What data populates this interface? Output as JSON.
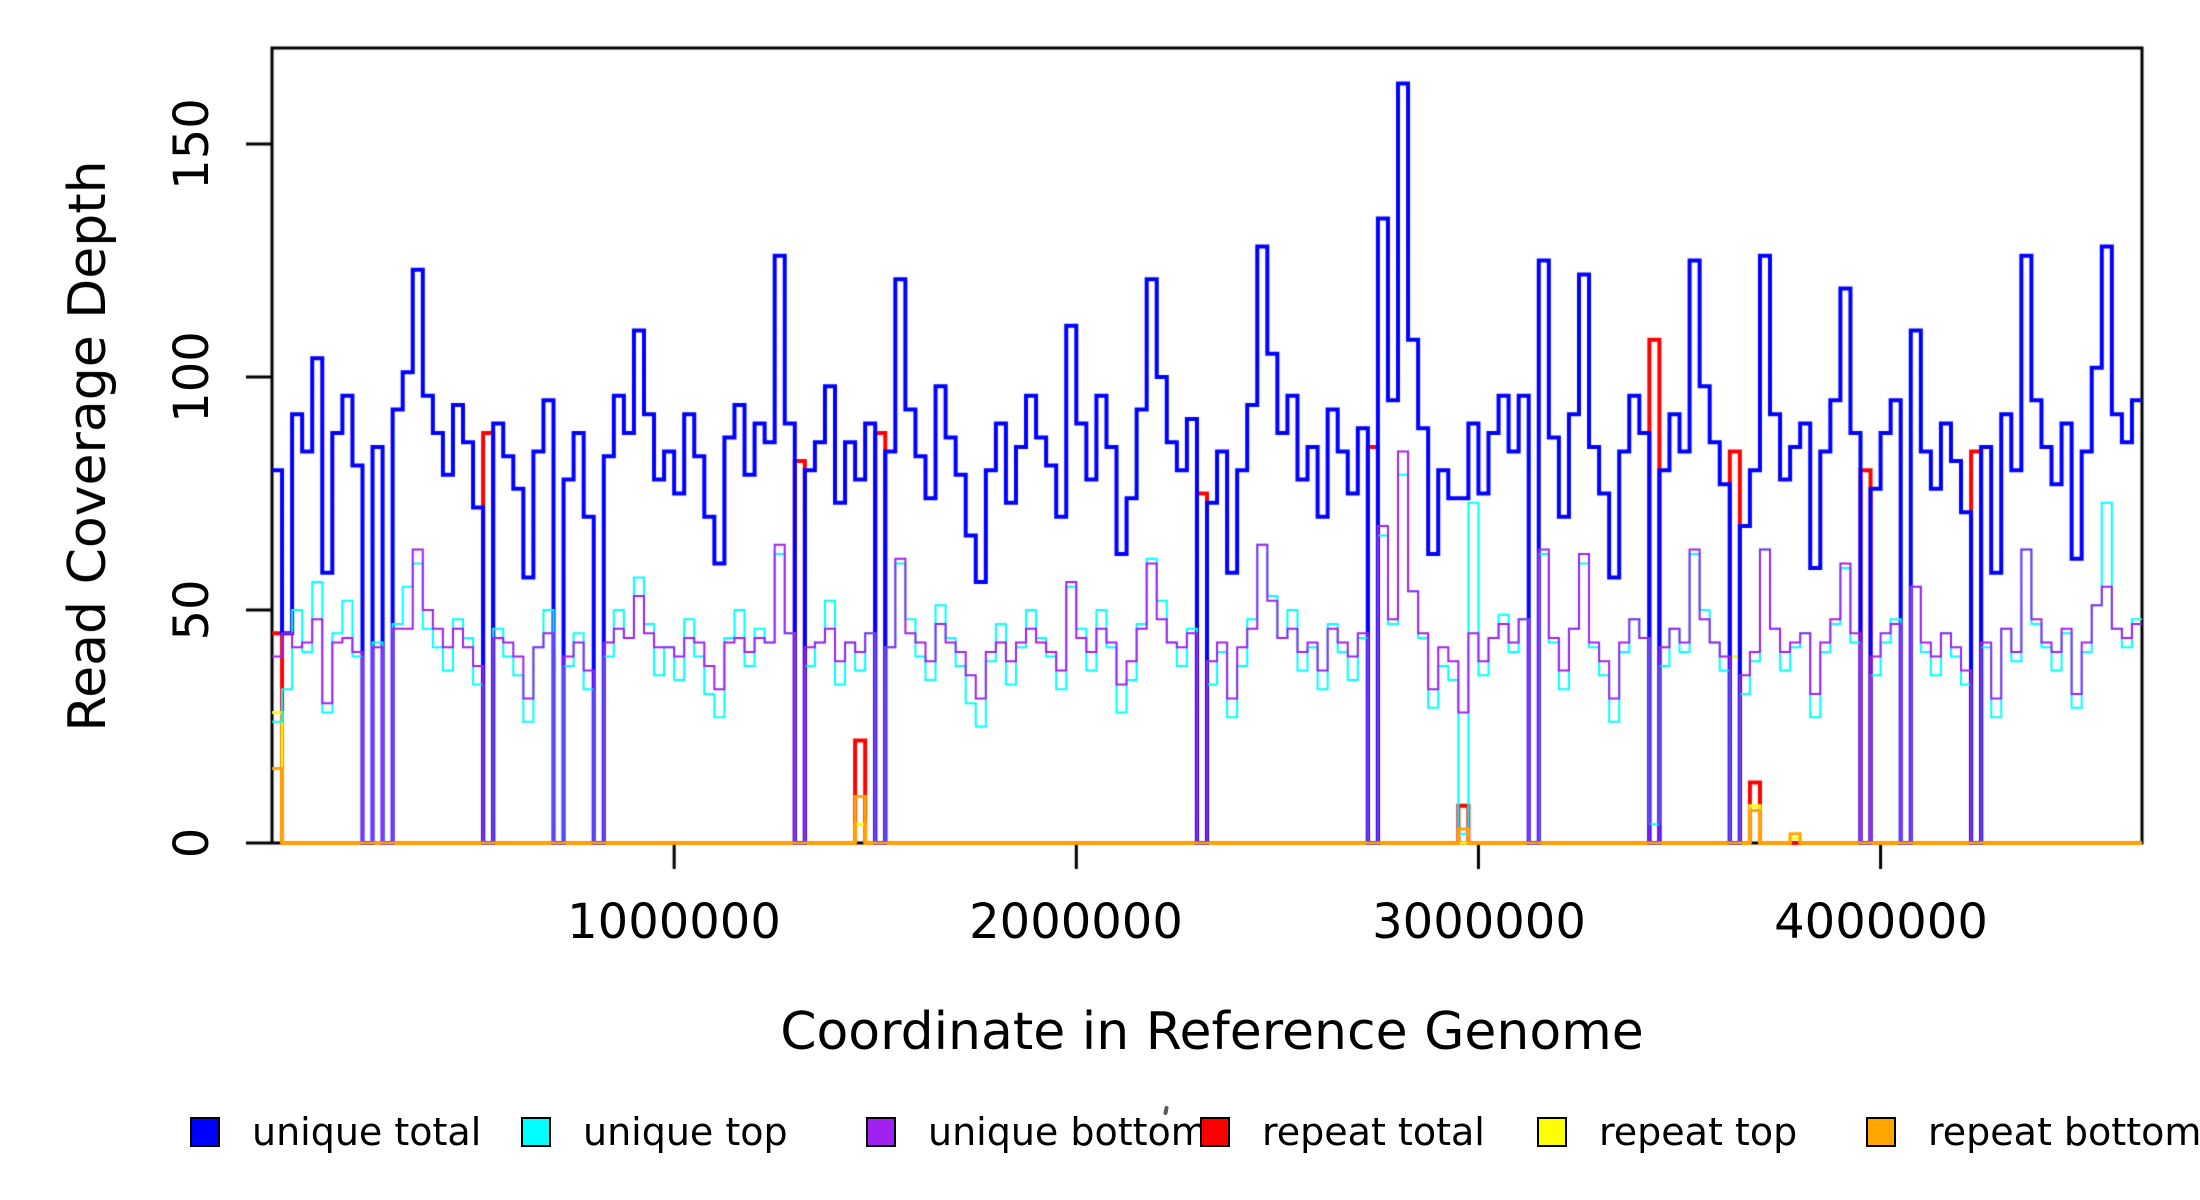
{
  "figure": {
    "background": "#ffffff",
    "y_axis": {
      "label": "Read Coverage Depth",
      "ticks": [
        "0",
        "50",
        "100",
        "150"
      ],
      "tick_values": [
        0,
        50,
        100,
        150
      ]
    },
    "x_axis": {
      "label": "Coordinate in Reference Genome",
      "ticks": [
        "1000000",
        "2000000",
        "3000000",
        "4000000"
      ],
      "tick_values": [
        1000000,
        2000000,
        3000000,
        4000000
      ]
    },
    "legend": [
      {
        "label": "unique total",
        "color": "#0000FF"
      },
      {
        "label": "unique top",
        "color": "#00FFFF"
      },
      {
        "label": "unique bottom",
        "color": "#A020F0"
      },
      {
        "label": "repeat total",
        "color": "#FF0000"
      },
      {
        "label": "repeat top",
        "color": "#FFFF00"
      },
      {
        "label": "repeat bottom",
        "color": "#FFA500"
      }
    ]
  },
  "chart_data": {
    "type": "line",
    "subtype": "step",
    "title": "",
    "xlabel": "Coordinate in Reference Genome",
    "ylabel": "Read Coverage Depth",
    "xlim": [
      0,
      4650000
    ],
    "ylim": [
      0,
      170
    ],
    "x_ticks": [
      1000000,
      2000000,
      3000000,
      4000000
    ],
    "y_ticks": [
      0,
      50,
      100,
      150
    ],
    "grid": false,
    "legend_position": "bottom",
    "bin_size": 25000,
    "n_bins": 186,
    "draw_order": [
      "repeat total",
      "repeat top",
      "unique total",
      "unique top",
      "unique bottom",
      "repeat bottom"
    ],
    "series": [
      {
        "name": "unique total",
        "color": "#0000FF",
        "lwd": 4,
        "values": [
          80,
          45,
          92,
          84,
          104,
          58,
          88,
          96,
          81,
          0,
          85,
          0,
          93,
          101,
          123,
          96,
          88,
          79,
          94,
          86,
          72,
          0,
          90,
          83,
          76,
          57,
          84,
          95,
          0,
          78,
          88,
          70,
          0,
          83,
          96,
          88,
          110,
          92,
          78,
          84,
          75,
          92,
          83,
          70,
          60,
          87,
          94,
          79,
          90,
          86,
          126,
          90,
          0,
          80,
          86,
          98,
          73,
          86,
          78,
          90,
          0,
          84,
          121,
          93,
          83,
          74,
          98,
          87,
          79,
          66,
          56,
          80,
          90,
          73,
          85,
          96,
          87,
          81,
          70,
          111,
          90,
          78,
          96,
          85,
          62,
          74,
          93,
          121,
          100,
          86,
          80,
          91,
          0,
          73,
          84,
          58,
          80,
          94,
          128,
          105,
          88,
          96,
          78,
          85,
          70,
          93,
          84,
          75,
          89,
          0,
          134,
          95,
          163,
          108,
          89,
          62,
          80,
          74,
          74,
          90,
          75,
          88,
          96,
          84,
          96,
          0,
          125,
          87,
          70,
          92,
          122,
          85,
          75,
          57,
          84,
          96,
          88,
          0,
          80,
          92,
          84,
          125,
          98,
          86,
          77,
          0,
          68,
          80,
          126,
          92,
          78,
          85,
          90,
          59,
          84,
          95,
          119,
          88,
          0,
          76,
          88,
          95,
          0,
          110,
          84,
          76,
          90,
          82,
          71,
          0,
          85,
          58,
          92,
          80,
          126,
          95,
          85,
          77,
          90,
          61,
          84,
          102,
          128,
          92,
          86,
          95
        ]
      },
      {
        "name": "unique top",
        "color": "#00FFFF",
        "lwd": 2,
        "values": [
          26,
          33,
          50,
          41,
          56,
          28,
          45,
          52,
          40,
          0,
          43,
          0,
          47,
          55,
          60,
          46,
          42,
          37,
          48,
          44,
          34,
          0,
          46,
          40,
          36,
          26,
          42,
          50,
          0,
          38,
          45,
          33,
          0,
          40,
          50,
          44,
          57,
          47,
          36,
          42,
          35,
          48,
          40,
          32,
          27,
          44,
          50,
          38,
          46,
          43,
          62,
          45,
          0,
          38,
          43,
          52,
          34,
          43,
          37,
          45,
          0,
          42,
          60,
          48,
          40,
          35,
          51,
          44,
          38,
          30,
          25,
          39,
          47,
          34,
          42,
          50,
          44,
          40,
          33,
          55,
          46,
          37,
          50,
          42,
          28,
          35,
          47,
          61,
          52,
          43,
          38,
          46,
          0,
          34,
          41,
          27,
          38,
          48,
          64,
          53,
          44,
          50,
          37,
          42,
          33,
          47,
          41,
          35,
          44,
          0,
          66,
          47,
          79,
          54,
          44,
          29,
          38,
          35,
          2,
          73,
          36,
          44,
          49,
          41,
          48,
          0,
          62,
          43,
          33,
          46,
          60,
          42,
          36,
          26,
          41,
          48,
          44,
          4,
          38,
          46,
          41,
          62,
          50,
          43,
          37,
          0,
          32,
          39,
          63,
          46,
          37,
          42,
          45,
          27,
          41,
          47,
          59,
          43,
          0,
          36,
          43,
          48,
          0,
          55,
          41,
          36,
          45,
          40,
          34,
          0,
          42,
          27,
          46,
          39,
          63,
          47,
          42,
          37,
          45,
          29,
          41,
          51,
          73,
          46,
          42,
          48
        ]
      },
      {
        "name": "unique bottom",
        "color": "#A020F0",
        "lwd": 2,
        "values": [
          40,
          45,
          42,
          43,
          48,
          30,
          43,
          44,
          41,
          0,
          42,
          0,
          46,
          46,
          63,
          50,
          46,
          42,
          46,
          42,
          38,
          0,
          44,
          43,
          40,
          31,
          42,
          45,
          0,
          40,
          43,
          37,
          0,
          43,
          46,
          44,
          53,
          45,
          42,
          42,
          40,
          44,
          43,
          38,
          33,
          43,
          44,
          41,
          44,
          43,
          64,
          45,
          0,
          42,
          43,
          46,
          39,
          43,
          41,
          45,
          0,
          42,
          61,
          45,
          43,
          39,
          47,
          43,
          41,
          36,
          31,
          41,
          43,
          39,
          43,
          46,
          43,
          41,
          37,
          56,
          44,
          41,
          46,
          43,
          34,
          39,
          46,
          60,
          48,
          43,
          42,
          45,
          0,
          39,
          43,
          31,
          42,
          46,
          64,
          52,
          44,
          46,
          41,
          43,
          37,
          46,
          43,
          40,
          45,
          0,
          68,
          48,
          84,
          54,
          45,
          33,
          42,
          39,
          28,
          45,
          39,
          44,
          47,
          43,
          48,
          0,
          63,
          44,
          37,
          46,
          62,
          43,
          39,
          31,
          43,
          48,
          44,
          0,
          42,
          46,
          43,
          63,
          48,
          43,
          40,
          0,
          36,
          41,
          63,
          46,
          41,
          43,
          45,
          32,
          43,
          48,
          60,
          45,
          0,
          40,
          45,
          47,
          0,
          55,
          43,
          40,
          45,
          42,
          37,
          0,
          43,
          31,
          46,
          41,
          63,
          48,
          43,
          41,
          46,
          32,
          43,
          51,
          55,
          46,
          44,
          47
        ]
      },
      {
        "name": "repeat total",
        "color": "#FF0000",
        "lwd": 4,
        "sparse": {
          "0": 45,
          "21": 88,
          "52": 82,
          "58": 22,
          "60": 88,
          "92": 75,
          "109": 85,
          "118": 8,
          "137": 108,
          "145": 84,
          "147": 13,
          "158": 80,
          "169": 84
        }
      },
      {
        "name": "repeat top",
        "color": "#FFFF00",
        "lwd": 3,
        "sparse": {
          "0": 28,
          "58": 4,
          "145": 40,
          "147": 8,
          "151": 1
        }
      },
      {
        "name": "repeat bottom",
        "color": "#FFA500",
        "lwd": 3,
        "sparse": {
          "0": 16,
          "58": 10,
          "118": 3,
          "147": 7,
          "151": 2
        }
      }
    ]
  }
}
